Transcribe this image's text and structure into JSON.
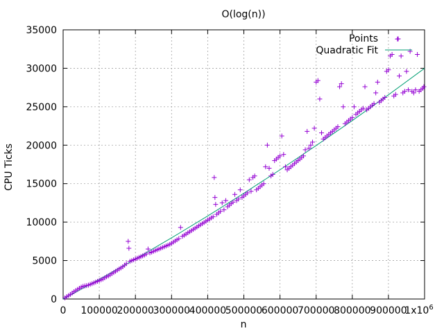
{
  "chart_data": {
    "type": "scatter",
    "title": "O(log(n))",
    "xlabel": "n",
    "ylabel": "CPU Ticks",
    "xlim": [
      0,
      1000000
    ],
    "ylim": [
      0,
      35000
    ],
    "grid": true,
    "legend_position": "top-right",
    "x_ticks": [
      {
        "value": 0,
        "label": "0"
      },
      {
        "value": 100000,
        "label": "100000"
      },
      {
        "value": 200000,
        "label": "200000"
      },
      {
        "value": 300000,
        "label": "300000"
      },
      {
        "value": 400000,
        "label": "400000"
      },
      {
        "value": 500000,
        "label": "500000"
      },
      {
        "value": 600000,
        "label": "600000"
      },
      {
        "value": 700000,
        "label": "700000"
      },
      {
        "value": 800000,
        "label": "800000"
      },
      {
        "value": 900000,
        "label": "900000"
      }
    ],
    "x_tick_last": {
      "value": 1000000,
      "base": "1x10",
      "exponent": "6"
    },
    "y_ticks": [
      {
        "value": 0,
        "label": "0"
      },
      {
        "value": 5000,
        "label": "5000"
      },
      {
        "value": 10000,
        "label": "10000"
      },
      {
        "value": 15000,
        "label": "15000"
      },
      {
        "value": 20000,
        "label": "20000"
      },
      {
        "value": 25000,
        "label": "25000"
      },
      {
        "value": 30000,
        "label": "30000"
      },
      {
        "value": 35000,
        "label": "35000"
      }
    ],
    "series": [
      {
        "name": "Points",
        "kind": "scatter",
        "marker": "+",
        "color": "#9400d3",
        "points": [
          [
            5000,
            150
          ],
          [
            10000,
            300
          ],
          [
            15000,
            450
          ],
          [
            20000,
            600
          ],
          [
            25000,
            780
          ],
          [
            30000,
            950
          ],
          [
            35000,
            1100
          ],
          [
            40000,
            1250
          ],
          [
            45000,
            1400
          ],
          [
            50000,
            1550
          ],
          [
            55000,
            1650
          ],
          [
            60000,
            1700
          ],
          [
            65000,
            1750
          ],
          [
            70000,
            1800
          ],
          [
            75000,
            1900
          ],
          [
            80000,
            2000
          ],
          [
            85000,
            2100
          ],
          [
            90000,
            2200
          ],
          [
            95000,
            2300
          ],
          [
            100000,
            2400
          ],
          [
            105000,
            2500
          ],
          [
            110000,
            2600
          ],
          [
            115000,
            2750
          ],
          [
            120000,
            2900
          ],
          [
            125000,
            3000
          ],
          [
            130000,
            3150
          ],
          [
            135000,
            3300
          ],
          [
            140000,
            3450
          ],
          [
            145000,
            3600
          ],
          [
            150000,
            3750
          ],
          [
            155000,
            3900
          ],
          [
            160000,
            4050
          ],
          [
            165000,
            4200
          ],
          [
            170000,
            4400
          ],
          [
            175000,
            4600
          ],
          [
            180000,
            7500
          ],
          [
            182000,
            6600
          ],
          [
            185000,
            4900
          ],
          [
            190000,
            5000
          ],
          [
            195000,
            5100
          ],
          [
            200000,
            5200
          ],
          [
            205000,
            5300
          ],
          [
            210000,
            5400
          ],
          [
            215000,
            5500
          ],
          [
            220000,
            5600
          ],
          [
            225000,
            5700
          ],
          [
            230000,
            5850
          ],
          [
            235000,
            6500
          ],
          [
            240000,
            6000
          ],
          [
            245000,
            6100
          ],
          [
            250000,
            6200
          ],
          [
            255000,
            6300
          ],
          [
            260000,
            6400
          ],
          [
            265000,
            6500
          ],
          [
            270000,
            6600
          ],
          [
            275000,
            6700
          ],
          [
            280000,
            6800
          ],
          [
            285000,
            6900
          ],
          [
            290000,
            7000
          ],
          [
            295000,
            7100
          ],
          [
            300000,
            7250
          ],
          [
            305000,
            7400
          ],
          [
            310000,
            7550
          ],
          [
            315000,
            7700
          ],
          [
            320000,
            7850
          ],
          [
            325000,
            9300
          ],
          [
            330000,
            8150
          ],
          [
            335000,
            8300
          ],
          [
            340000,
            8450
          ],
          [
            345000,
            8600
          ],
          [
            350000,
            8750
          ],
          [
            355000,
            8900
          ],
          [
            360000,
            9050
          ],
          [
            365000,
            9200
          ],
          [
            370000,
            9350
          ],
          [
            375000,
            9500
          ],
          [
            380000,
            9650
          ],
          [
            385000,
            9800
          ],
          [
            390000,
            9950
          ],
          [
            395000,
            10100
          ],
          [
            400000,
            10250
          ],
          [
            405000,
            10400
          ],
          [
            410000,
            10550
          ],
          [
            415000,
            10700
          ],
          [
            418000,
            15800
          ],
          [
            420000,
            13200
          ],
          [
            422000,
            12300
          ],
          [
            425000,
            11000
          ],
          [
            430000,
            11200
          ],
          [
            435000,
            11400
          ],
          [
            440000,
            12500
          ],
          [
            445000,
            11600
          ],
          [
            450000,
            12800
          ],
          [
            455000,
            12000
          ],
          [
            460000,
            12200
          ],
          [
            465000,
            12400
          ],
          [
            470000,
            12600
          ],
          [
            475000,
            13600
          ],
          [
            480000,
            12800
          ],
          [
            485000,
            13000
          ],
          [
            490000,
            14200
          ],
          [
            495000,
            13200
          ],
          [
            500000,
            13400
          ],
          [
            505000,
            13600
          ],
          [
            510000,
            13800
          ],
          [
            515000,
            15500
          ],
          [
            520000,
            14000
          ],
          [
            525000,
            15800
          ],
          [
            530000,
            16000
          ],
          [
            535000,
            14200
          ],
          [
            540000,
            14400
          ],
          [
            545000,
            14600
          ],
          [
            550000,
            14800
          ],
          [
            555000,
            15000
          ],
          [
            560000,
            17200
          ],
          [
            565000,
            20000
          ],
          [
            570000,
            17000
          ],
          [
            575000,
            16000
          ],
          [
            580000,
            16200
          ],
          [
            585000,
            18000
          ],
          [
            590000,
            18200
          ],
          [
            595000,
            18400
          ],
          [
            600000,
            18600
          ],
          [
            605000,
            21200
          ],
          [
            610000,
            18800
          ],
          [
            615000,
            17200
          ],
          [
            620000,
            16800
          ],
          [
            625000,
            17000
          ],
          [
            630000,
            17200
          ],
          [
            635000,
            17400
          ],
          [
            640000,
            17600
          ],
          [
            645000,
            17800
          ],
          [
            650000,
            18000
          ],
          [
            655000,
            18200
          ],
          [
            660000,
            18400
          ],
          [
            665000,
            18600
          ],
          [
            670000,
            19400
          ],
          [
            675000,
            21800
          ],
          [
            680000,
            19600
          ],
          [
            685000,
            20000
          ],
          [
            690000,
            20400
          ],
          [
            695000,
            22200
          ],
          [
            700000,
            28200
          ],
          [
            705000,
            28400
          ],
          [
            710000,
            26000
          ],
          [
            715000,
            21600
          ],
          [
            720000,
            20800
          ],
          [
            725000,
            21000
          ],
          [
            730000,
            21200
          ],
          [
            735000,
            21400
          ],
          [
            740000,
            21600
          ],
          [
            745000,
            21800
          ],
          [
            750000,
            22000
          ],
          [
            755000,
            22200
          ],
          [
            760000,
            22400
          ],
          [
            765000,
            27600
          ],
          [
            770000,
            28000
          ],
          [
            775000,
            25000
          ],
          [
            780000,
            22800
          ],
          [
            785000,
            23000
          ],
          [
            790000,
            23200
          ],
          [
            795000,
            23400
          ],
          [
            800000,
            23600
          ],
          [
            805000,
            25000
          ],
          [
            810000,
            24000
          ],
          [
            815000,
            24200
          ],
          [
            820000,
            24400
          ],
          [
            825000,
            24600
          ],
          [
            830000,
            24800
          ],
          [
            835000,
            27600
          ],
          [
            840000,
            24600
          ],
          [
            845000,
            24800
          ],
          [
            850000,
            25000
          ],
          [
            855000,
            25200
          ],
          [
            860000,
            25400
          ],
          [
            865000,
            26800
          ],
          [
            870000,
            28200
          ],
          [
            875000,
            25600
          ],
          [
            880000,
            25800
          ],
          [
            885000,
            26000
          ],
          [
            890000,
            26200
          ],
          [
            895000,
            29600
          ],
          [
            900000,
            29800
          ],
          [
            905000,
            31600
          ],
          [
            910000,
            31800
          ],
          [
            915000,
            26400
          ],
          [
            920000,
            26600
          ],
          [
            925000,
            33800
          ],
          [
            930000,
            29000
          ],
          [
            935000,
            31600
          ],
          [
            940000,
            26800
          ],
          [
            945000,
            27000
          ],
          [
            950000,
            29600
          ],
          [
            955000,
            27200
          ],
          [
            960000,
            32200
          ],
          [
            965000,
            27000
          ],
          [
            970000,
            26800
          ],
          [
            975000,
            27200
          ],
          [
            980000,
            31800
          ],
          [
            985000,
            27000
          ],
          [
            990000,
            27200
          ],
          [
            995000,
            27400
          ],
          [
            998000,
            27600
          ]
        ]
      },
      {
        "name": "Quadratic Fit",
        "kind": "line",
        "color": "#009e73",
        "points": [
          [
            0,
            0
          ],
          [
            100000,
            2550
          ],
          [
            200000,
            5200
          ],
          [
            300000,
            7950
          ],
          [
            400000,
            10800
          ],
          [
            500000,
            13750
          ],
          [
            600000,
            16800
          ],
          [
            700000,
            19950
          ],
          [
            800000,
            23200
          ],
          [
            900000,
            26550
          ],
          [
            1000000,
            30000
          ]
        ]
      }
    ]
  }
}
